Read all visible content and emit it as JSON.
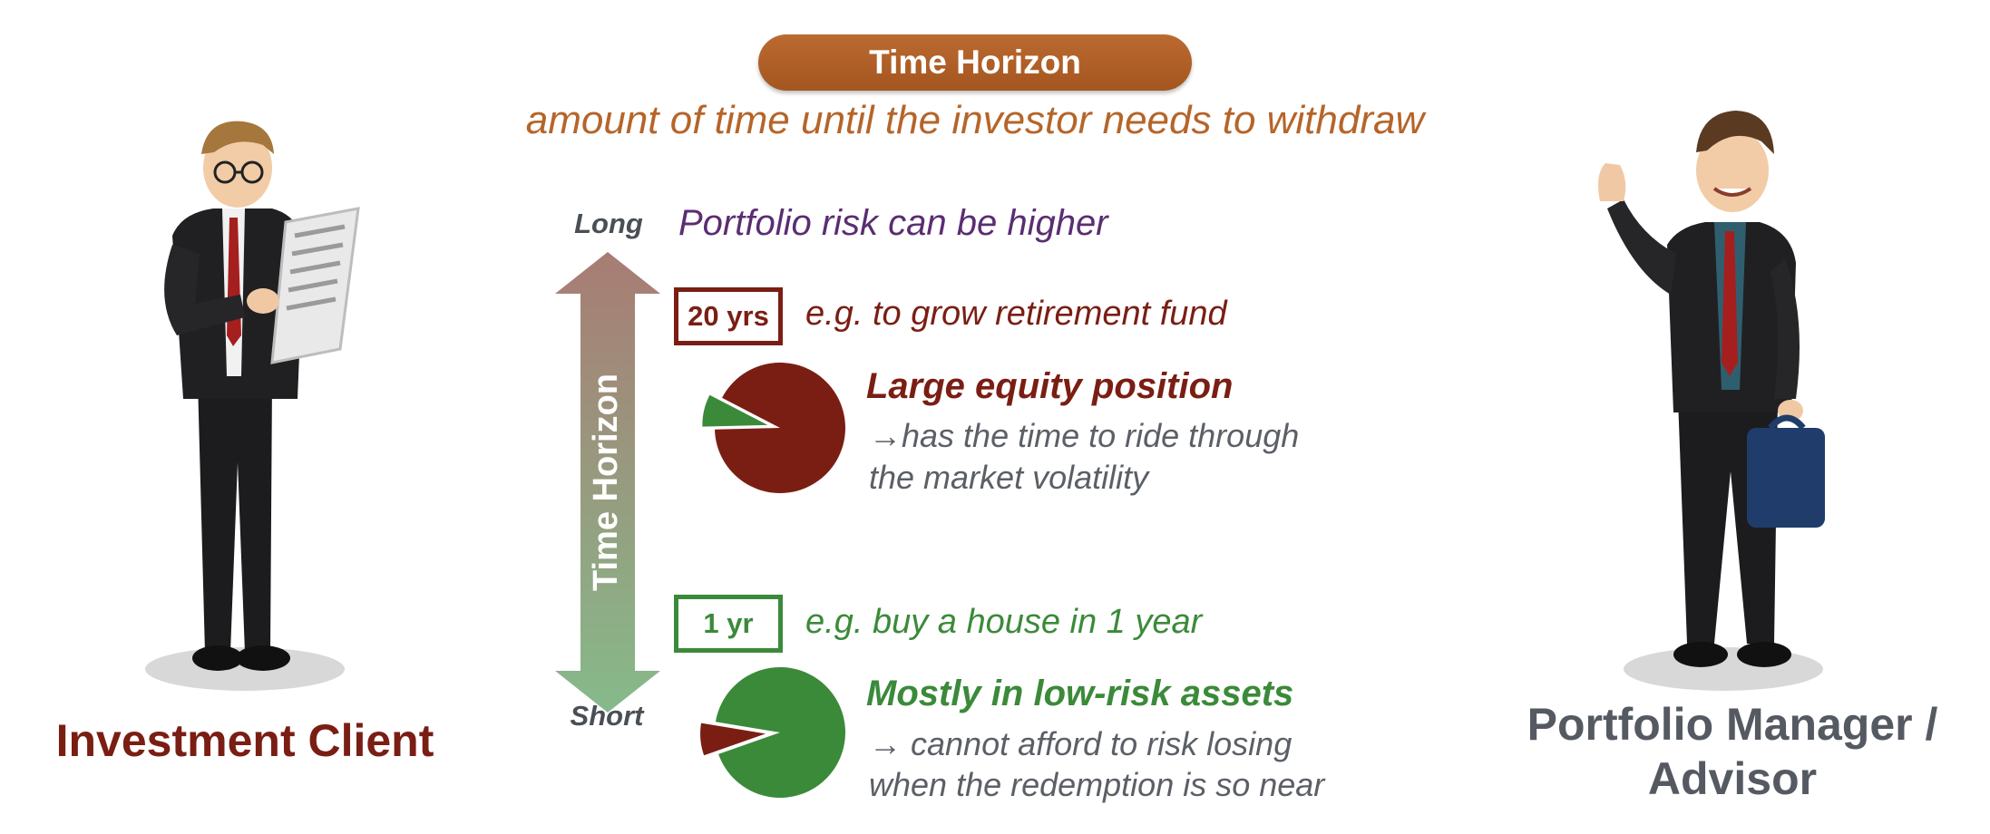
{
  "title": "Time Horizon",
  "subtitle": "amount of time until the investor needs to withdraw",
  "axis": {
    "label": "Time Horizon",
    "top_label": "Long",
    "bottom_label": "Short",
    "long_color": "#a97a72",
    "short_color": "#85b88a"
  },
  "risk_note": "Portfolio risk can be higher",
  "long_term": {
    "badge": "20 yrs",
    "example": "e.g. to grow retirement fund",
    "heading": "Large equity position",
    "desc_line1": "→has the time to ride through",
    "desc_line2": "the market volatility",
    "pie": {
      "equity_share": 0.92,
      "other_share": 0.08,
      "main_color": "#7a1e14",
      "slice_color": "#3b8a3a"
    }
  },
  "short_term": {
    "badge": "1 yr",
    "example": "e.g. buy a house in 1 year",
    "heading": "Mostly in low-risk assets",
    "desc_line1": "→ cannot afford to risk losing",
    "desc_line2": "when the redemption is so near",
    "pie": {
      "low_risk_share": 0.92,
      "equity_share": 0.08,
      "main_color": "#3b8a3a",
      "slice_color": "#7a1e14"
    }
  },
  "left_person": {
    "label": "Investment Client",
    "color": "#7a1e14"
  },
  "right_person": {
    "label_line1": "Portfolio Manager /",
    "label_line2": "Advisor",
    "color": "#555a62"
  }
}
